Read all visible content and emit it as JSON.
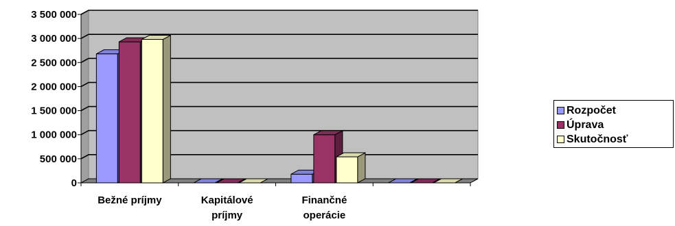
{
  "chart_data": {
    "type": "bar",
    "categories": [
      [
        "Bežné príjmy"
      ],
      [
        "Kapitálové",
        "príjmy"
      ],
      [
        "Finančné",
        "operácie"
      ],
      [
        ""
      ]
    ],
    "series": [
      {
        "name": "Rozpočet",
        "color": "#9999ff",
        "values": [
          2680000,
          0,
          180000,
          0
        ]
      },
      {
        "name": "Úprava",
        "color": "#993366",
        "values": [
          2930000,
          0,
          1000000,
          0
        ]
      },
      {
        "name": "Skutočnosť",
        "color": "#ffffcc",
        "values": [
          2980000,
          0,
          540000,
          0
        ]
      }
    ],
    "y_ticks": [
      "0",
      "500 000",
      "1 000 000",
      "1 500 000",
      "2 000 000",
      "2 500 000",
      "3 000 000",
      "3 500 000"
    ],
    "ylim": [
      0,
      3500000
    ],
    "wall_color": "#c0c0c0",
    "grid": true,
    "legend_position": "right",
    "three_d": true
  }
}
